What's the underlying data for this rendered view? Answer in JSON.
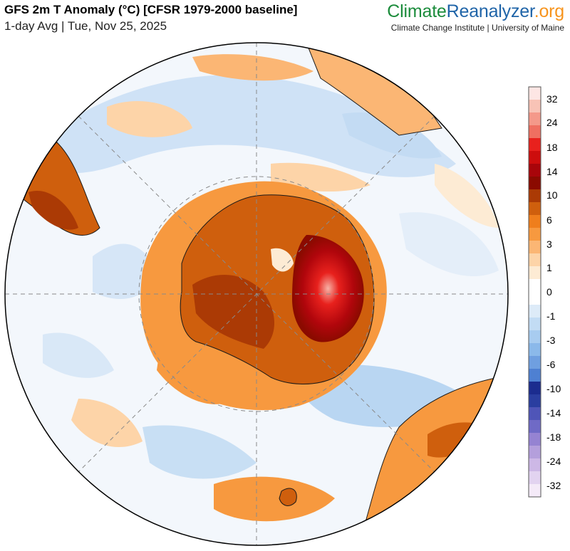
{
  "header": {
    "title": "GFS 2m T Anomaly (°C) [CFSR 1979-2000 baseline]",
    "subtitle": "1-day Avg | Tue, Nov 25, 2025"
  },
  "brand": {
    "logo_part1": "Climate",
    "logo_part2": "Reanalyzer",
    "logo_part3": ".org",
    "tagline": "Climate Change Institute | University of Maine"
  },
  "colorbar": {
    "labels": [
      "32",
      "24",
      "18",
      "14",
      "10",
      "6",
      "3",
      "1",
      "0",
      "-1",
      "-3",
      "-6",
      "-10",
      "-14",
      "-18",
      "-24",
      "-32"
    ],
    "colors": [
      "#fde6e4",
      "#f8c3b6",
      "#f4998a",
      "#ef6f61",
      "#e8211d",
      "#cd0d0d",
      "#a8050a",
      "#8b0a00",
      "#ab3a05",
      "#cf5f0d",
      "#ef7e1c",
      "#f7993f",
      "#fbb674",
      "#fdd4a8",
      "#fdebd4",
      "#ffffff",
      "#ffffff",
      "#ddebf8",
      "#c2dcf4",
      "#a8ccf0",
      "#8bb9ea",
      "#6f9fe0",
      "#4e80d2",
      "#1b2c8f",
      "#2a3ea0",
      "#4f55b8",
      "#6f6ac6",
      "#9583d2",
      "#b49fdc",
      "#cdb8e6",
      "#e2d3f0",
      "#f4eaf8"
    ]
  }
}
